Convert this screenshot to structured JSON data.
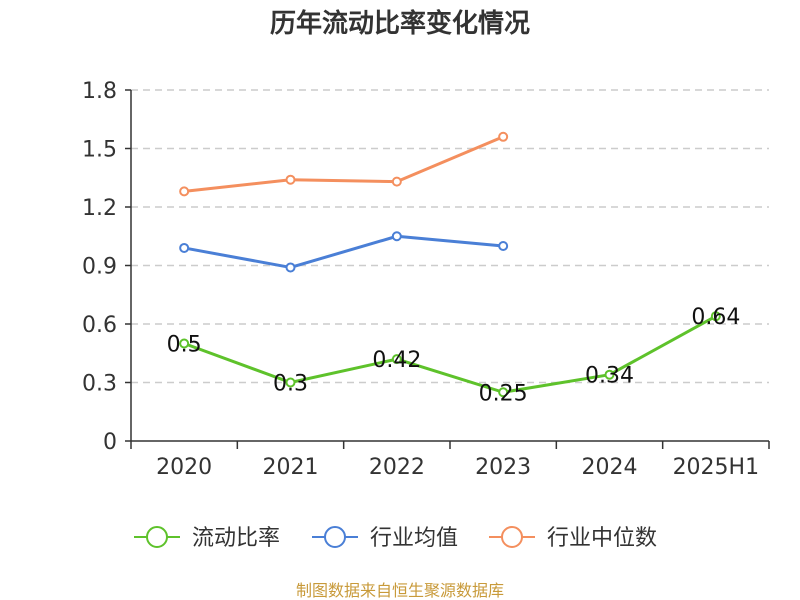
{
  "chart_data": {
    "type": "line",
    "title": "历年流动比率变化情况",
    "categories": [
      "2020",
      "2021",
      "2022",
      "2023",
      "2024",
      "2025H1"
    ],
    "ylim": [
      0,
      1.8
    ],
    "yticks": [
      "0",
      "0.3",
      "0.6",
      "0.9",
      "1.2",
      "1.5",
      "1.8"
    ],
    "grid": true,
    "legend_position": "bottom",
    "series": [
      {
        "name": "流动比率",
        "color": "#5ec22b",
        "values": [
          0.5,
          0.3,
          0.42,
          0.25,
          0.34,
          0.64
        ],
        "data_labels": [
          "0.5",
          "0.3",
          "0.42",
          "0.25",
          "0.34",
          "0.64"
        ]
      },
      {
        "name": "行业均值",
        "color": "#4a7fd6",
        "values": [
          0.99,
          0.89,
          1.05,
          1.0,
          null,
          null
        ]
      },
      {
        "name": "行业中位数",
        "color": "#f48f5e",
        "values": [
          1.28,
          1.34,
          1.33,
          1.56,
          null,
          null
        ]
      }
    ]
  },
  "footer": {
    "source": "制图数据来自恒生聚源数据库"
  }
}
